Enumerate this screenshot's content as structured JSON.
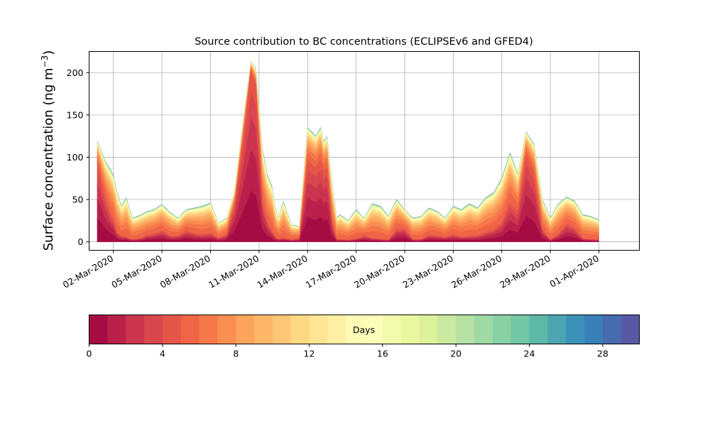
{
  "chart_data": {
    "type": "area",
    "title": "Source contribution to BC concentrations (ECLIPSEv6 and GFED4)",
    "xlabel": "",
    "ylabel": "Surface concentration (ng m",
    "ylabel_unit_exponent": "−3",
    "ylabel_close": ")",
    "ylim": [
      -10,
      225
    ],
    "y_ticks": [
      0,
      50,
      100,
      150,
      200
    ],
    "x_tick_labels": [
      "02-Mar-2020",
      "05-Mar-2020",
      "08-Mar-2020",
      "11-Mar-2020",
      "14-Mar-2020",
      "17-Mar-2020",
      "20-Mar-2020",
      "23-Mar-2020",
      "26-Mar-2020",
      "29-Mar-2020",
      "01-Apr-2020"
    ],
    "x_tick_days": [
      1,
      4,
      7,
      10,
      13,
      16,
      19,
      22,
      25,
      28,
      31
    ],
    "xlim_days": [
      -0.5,
      33.5
    ],
    "grid": true,
    "x_days": [
      0.0,
      0.2,
      0.5,
      0.8,
      1.0,
      1.2,
      1.5,
      1.8,
      2.0,
      2.2,
      2.5,
      2.8,
      3.0,
      3.5,
      4.0,
      4.5,
      5.0,
      5.5,
      6.0,
      6.5,
      7.0,
      7.5,
      8.0,
      8.5,
      9.0,
      9.5,
      9.8,
      10.2,
      10.5,
      10.8,
      11.0,
      11.2,
      11.5,
      12.0,
      12.5,
      13.0,
      13.5,
      13.8,
      14.0,
      14.2,
      14.5,
      14.8,
      15.0,
      15.5,
      16.0,
      16.5,
      17.0,
      17.5,
      18.0,
      18.5,
      19.0,
      19.5,
      20.0,
      20.5,
      21.0,
      21.5,
      22.0,
      22.5,
      23.0,
      23.5,
      24.0,
      24.5,
      25.0,
      25.5,
      26.0,
      26.5,
      27.0,
      27.5,
      28.0,
      28.5,
      29.0,
      29.5,
      30.0,
      30.5,
      31.0
    ],
    "total": [
      119,
      110,
      95,
      86,
      78,
      60,
      42,
      52,
      38,
      28,
      30,
      33,
      35,
      38,
      44,
      35,
      28,
      38,
      40,
      42,
      46,
      22,
      28,
      60,
      140,
      213,
      205,
      110,
      80,
      65,
      40,
      28,
      48,
      20,
      18,
      135,
      125,
      135,
      118,
      124,
      70,
      28,
      32,
      25,
      38,
      28,
      45,
      42,
      30,
      50,
      38,
      28,
      30,
      40,
      36,
      28,
      42,
      38,
      45,
      40,
      52,
      58,
      75,
      105,
      80,
      130,
      115,
      50,
      28,
      45,
      53,
      48,
      32,
      30,
      26
    ],
    "fresh_fraction": [
      0.8,
      0.72,
      0.55,
      0.4,
      0.35,
      0.2,
      0.15,
      0.12,
      0.1,
      0.1,
      0.12,
      0.15,
      0.22,
      0.25,
      0.3,
      0.2,
      0.25,
      0.35,
      0.25,
      0.2,
      0.22,
      0.2,
      0.3,
      0.75,
      0.85,
      0.95,
      0.9,
      0.45,
      0.3,
      0.2,
      0.15,
      0.12,
      0.1,
      0.12,
      0.2,
      0.72,
      0.7,
      0.72,
      0.72,
      0.72,
      0.35,
      0.08,
      0.1,
      0.08,
      0.1,
      0.25,
      0.1,
      0.08,
      0.08,
      0.3,
      0.42,
      0.1,
      0.1,
      0.2,
      0.2,
      0.2,
      0.2,
      0.15,
      0.15,
      0.18,
      0.22,
      0.25,
      0.3,
      0.45,
      0.45,
      0.8,
      0.7,
      0.3,
      0.1,
      0.2,
      0.4,
      0.35,
      0.12,
      0.1,
      0.1
    ],
    "colorbar": {
      "label": "Days",
      "min": 0,
      "max": 30,
      "n_bins": 30,
      "tick_values": [
        0,
        4,
        8,
        12,
        16,
        20,
        24,
        28
      ],
      "tick_labels": [
        "0",
        "4",
        "8",
        "12",
        "16",
        "20",
        "24",
        "28"
      ],
      "colormap": "Spectral",
      "colormap_stops": [
        "#9e0142",
        "#d53e4f",
        "#f46d43",
        "#fdae61",
        "#fee08b",
        "#ffffbf",
        "#e6f598",
        "#abdda4",
        "#66c2a5",
        "#3288bd",
        "#5e4fa2"
      ]
    }
  }
}
